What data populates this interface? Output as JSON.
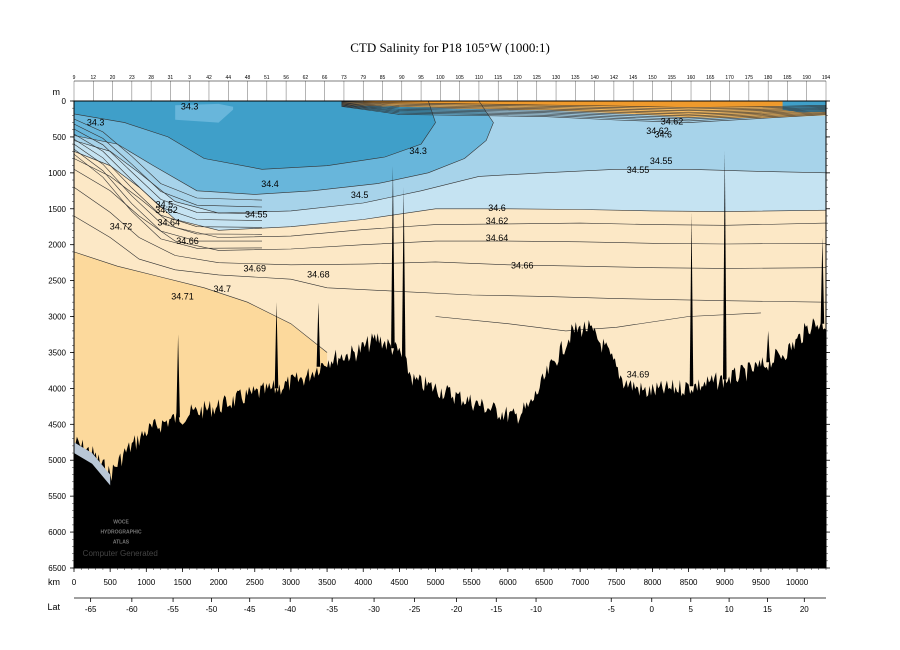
{
  "colors": {
    "level_1": "#3f9fc9",
    "level_2": "#68b6db",
    "level_3": "#a7d3ea",
    "level_4": "#c5e3f2",
    "level_5": "#fce8c6",
    "level_6": "#fcd99c",
    "level_7": "#f6bb62",
    "level_8": "#ef9a2c",
    "bathymetry": "#000000"
  },
  "chart_data": {
    "type": "heatmap",
    "title": "CTD Salinity for P18 105°W (1000:1)",
    "depth_axis": {
      "unit": "m",
      "range": [
        0,
        6500
      ],
      "ticks": [
        0,
        500,
        1000,
        1500,
        2000,
        2500,
        3000,
        3500,
        4000,
        4500,
        5000,
        5500,
        6000,
        6500
      ]
    },
    "distance_axis": {
      "unit": "km",
      "range": [
        0,
        10400
      ],
      "ticks": [
        0,
        500,
        1000,
        1500,
        2000,
        2500,
        3000,
        3500,
        4000,
        4500,
        5000,
        5500,
        6000,
        6500,
        7000,
        7500,
        8000,
        8500,
        9000,
        9500,
        10000
      ]
    },
    "lat_axis": {
      "label": "Lat",
      "ticks": [
        {
          "lat": -65,
          "km": 230
        },
        {
          "lat": -60,
          "km": 800
        },
        {
          "lat": -55,
          "km": 1370
        },
        {
          "lat": -50,
          "km": 1900
        },
        {
          "lat": -45,
          "km": 2430
        },
        {
          "lat": -40,
          "km": 2990
        },
        {
          "lat": -35,
          "km": 3570
        },
        {
          "lat": -30,
          "km": 4150
        },
        {
          "lat": -25,
          "km": 4710
        },
        {
          "lat": -20,
          "km": 5290
        },
        {
          "lat": -15,
          "km": 5840
        },
        {
          "lat": -10,
          "km": 6390
        },
        {
          "lat": -5,
          "km": 7430
        },
        {
          "lat": 0,
          "km": 7990
        },
        {
          "lat": 5,
          "km": 8530
        },
        {
          "lat": 10,
          "km": 9060
        },
        {
          "lat": 15,
          "km": 9590
        },
        {
          "lat": 20,
          "km": 10100
        }
      ]
    },
    "stations_top": [
      "9",
      "12",
      "20",
      "23",
      "28",
      "31",
      "3",
      "42",
      "44",
      "48",
      "51",
      "56",
      "62",
      "66",
      "73",
      "79",
      "85",
      "90",
      "95",
      "100",
      "105",
      "110",
      "115",
      "120",
      "125",
      "130",
      "135",
      "140",
      "142",
      "145",
      "150",
      "155",
      "160",
      "165",
      "170",
      "175",
      "180",
      "185",
      "190",
      "194"
    ],
    "salinity_levels": [
      34.3,
      34.4,
      34.5,
      34.55,
      34.6,
      34.62,
      34.64,
      34.66,
      34.68,
      34.69,
      34.7,
      34.71,
      34.72
    ],
    "contour_labels": [
      {
        "text": "34.3",
        "km": 1600,
        "depth": 120
      },
      {
        "text": "34.3",
        "km": 300,
        "depth": 340
      },
      {
        "text": "34.3",
        "km": 4760,
        "depth": 740
      },
      {
        "text": "34.4",
        "km": 2710,
        "depth": 1200
      },
      {
        "text": "34.5",
        "km": 3950,
        "depth": 1350
      },
      {
        "text": "34.55",
        "km": 7800,
        "depth": 1000
      },
      {
        "text": "34.55",
        "km": 8120,
        "depth": 880
      },
      {
        "text": "34.5",
        "km": 1250,
        "depth": 1480
      },
      {
        "text": "34.62",
        "km": 1280,
        "depth": 1560
      },
      {
        "text": "34.55",
        "km": 2520,
        "depth": 1620
      },
      {
        "text": "34.64",
        "km": 1310,
        "depth": 1730
      },
      {
        "text": "34.72",
        "km": 650,
        "depth": 1790
      },
      {
        "text": "34.66",
        "km": 1570,
        "depth": 1990
      },
      {
        "text": "34.6",
        "km": 5850,
        "depth": 1530
      },
      {
        "text": "34.62",
        "km": 5850,
        "depth": 1710
      },
      {
        "text": "34.64",
        "km": 5850,
        "depth": 1950
      },
      {
        "text": "34.66",
        "km": 6200,
        "depth": 2330
      },
      {
        "text": "34.69",
        "km": 2500,
        "depth": 2370
      },
      {
        "text": "34.68",
        "km": 3380,
        "depth": 2460
      },
      {
        "text": "34.7",
        "km": 2050,
        "depth": 2660
      },
      {
        "text": "34.71",
        "km": 1500,
        "depth": 2760
      },
      {
        "text": "34.69",
        "km": 7800,
        "depth": 3850
      },
      {
        "text": "34.62",
        "km": 8270,
        "depth": 330
      },
      {
        "text": "34.62",
        "km": 8070,
        "depth": 460
      },
      {
        "text": "34.6",
        "km": 8150,
        "depth": 510
      }
    ],
    "logo_lines": [
      "WOCE",
      "HYDROGRAPHIC",
      "ATLAS"
    ],
    "credit": "Computer Generated",
    "grid": false,
    "legend": "none"
  }
}
